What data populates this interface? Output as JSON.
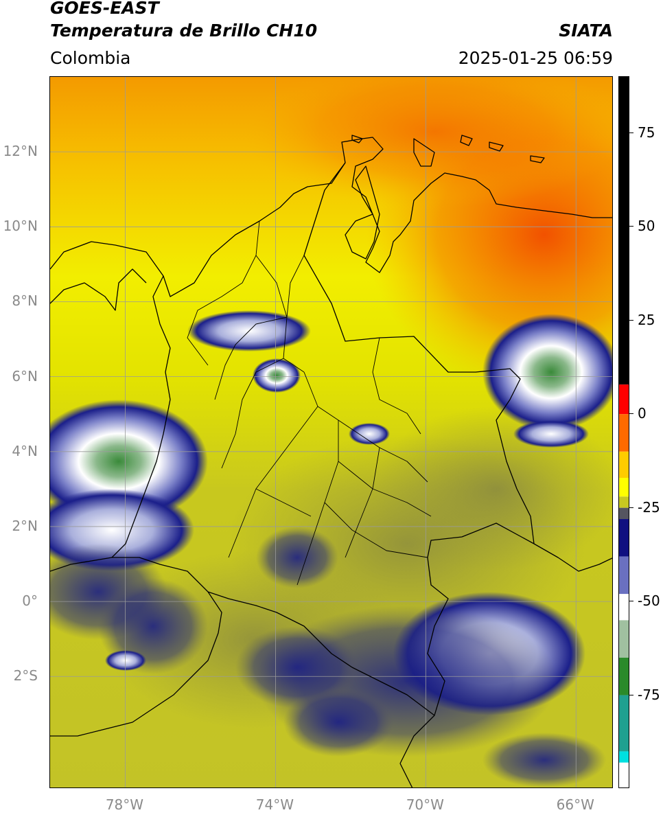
{
  "header": {
    "satellite": "GOES-EAST",
    "product": "Temperatura de Brillo CH10",
    "organization": "SIATA",
    "region": "Colombia",
    "timestamp": "2025-01-25 06:59"
  },
  "map": {
    "lon_range": [
      -80,
      -65
    ],
    "lat_range": [
      -5,
      14
    ],
    "lat_ticks": [
      "12°N",
      "10°N",
      "8°N",
      "6°N",
      "4°N",
      "2°N",
      "0°",
      "2°S"
    ],
    "lat_values": [
      12,
      10,
      8,
      6,
      4,
      2,
      0,
      -2
    ],
    "lon_ticks": [
      "78°W",
      "74°W",
      "70°W",
      "66°W"
    ],
    "lon_values": [
      -78,
      -74,
      -70,
      -66
    ],
    "grid": true
  },
  "colorbar": {
    "range": [
      -100,
      90
    ],
    "ticks": [
      "75",
      "50",
      "25",
      "0",
      "-25",
      "-50",
      "-75"
    ],
    "tick_values": [
      75,
      50,
      25,
      0,
      -25,
      -50,
      -75
    ]
  }
}
